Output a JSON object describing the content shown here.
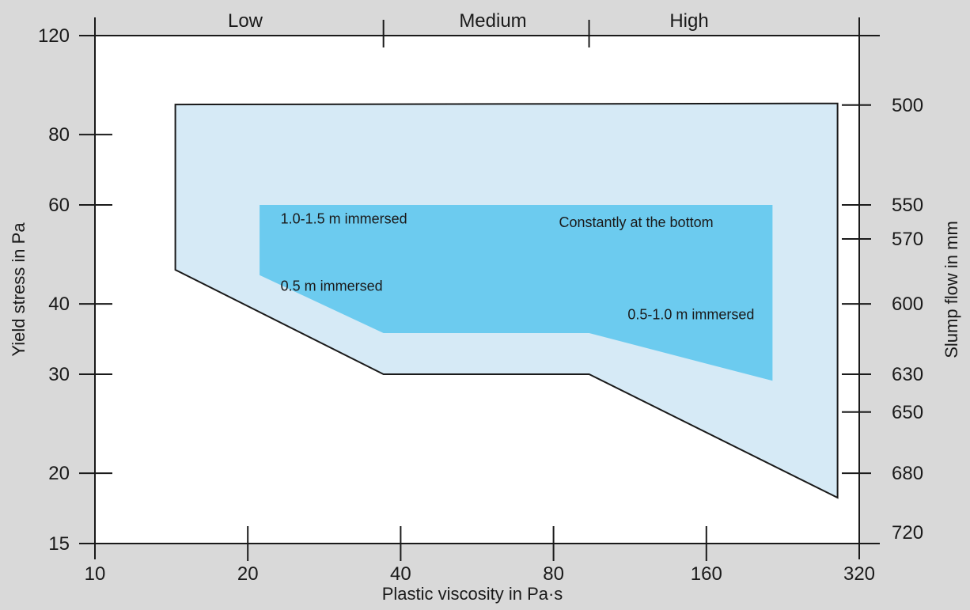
{
  "chart_data": {
    "type": "area",
    "xlabel": "Plastic viscosity in Pa·s",
    "ylabel": "Yield stress in Pa",
    "y2label": "Slump flow in mm",
    "x_scale": "log",
    "y_scale": "log",
    "xlim": [
      10,
      320
    ],
    "ylim": [
      15,
      120
    ],
    "x_ticks": [
      10,
      20,
      40,
      80,
      160,
      320
    ],
    "y_ticks": [
      15,
      20,
      30,
      40,
      60,
      80,
      120
    ],
    "y2_ticks": [
      {
        "label": "500",
        "yield_stress": 90.3
      },
      {
        "label": "550",
        "yield_stress": 60.0
      },
      {
        "label": "570",
        "yield_stress": 52.2
      },
      {
        "label": "600",
        "yield_stress": 40.0
      },
      {
        "label": "630",
        "yield_stress": 30.0
      },
      {
        "label": "650",
        "yield_stress": 25.7
      },
      {
        "label": "680",
        "yield_stress": 20.0
      },
      {
        "label": "720",
        "yield_stress": 15.7
      }
    ],
    "top_categories": [
      {
        "label": "Low",
        "from": 10,
        "to": 37
      },
      {
        "label": "Medium",
        "from": 37,
        "to": 94
      },
      {
        "label": "High",
        "from": 94,
        "to": 320
      }
    ],
    "top_boundaries": [
      37,
      94
    ],
    "regions": [
      {
        "name": "outer",
        "color": "#d6eaf6",
        "outlined": true,
        "points": [
          [
            14.4,
            90.5
          ],
          [
            290,
            90.9
          ],
          [
            290,
            18.1
          ],
          [
            94,
            30.0
          ],
          [
            37,
            30.0
          ],
          [
            14.4,
            46.0
          ]
        ]
      },
      {
        "name": "inner",
        "color": "#6ccbef",
        "outlined": false,
        "points": [
          [
            21.1,
            60.0
          ],
          [
            216,
            60.0
          ],
          [
            216,
            29.2
          ],
          [
            94,
            35.5
          ],
          [
            37,
            35.5
          ],
          [
            21.1,
            45.0
          ]
        ]
      }
    ],
    "annotations": [
      {
        "text": "1.0-1.5 m immersed",
        "x": 23.2,
        "y": 55.6
      },
      {
        "text": "Constantly at the bottom",
        "x": 82,
        "y": 54.8
      },
      {
        "text": "0.5 m immersed",
        "x": 23.2,
        "y": 42.2
      },
      {
        "text": "0.5-1.0 m immersed",
        "x": 112,
        "y": 37.6
      }
    ]
  }
}
